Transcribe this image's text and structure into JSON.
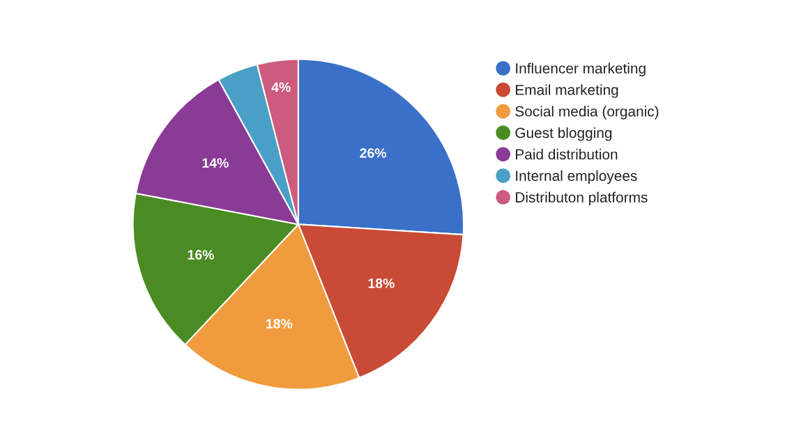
{
  "chart_data": {
    "type": "pie",
    "categories": [
      "Influencer marketing",
      "Email marketing",
      "Social media (organic)",
      "Guest blogging",
      "Paid distribution",
      "Internal employees",
      "Distributon platforms"
    ],
    "values": [
      26,
      18,
      18,
      16,
      14,
      4,
      4
    ],
    "value_labels": [
      "26%",
      "18%",
      "18%",
      "16%",
      "14%",
      null,
      "4%"
    ],
    "colors": [
      "#3a70c7",
      "#c94a35",
      "#f09c3e",
      "#4a8c23",
      "#8a3b96",
      "#4a9fc6",
      "#cc5b7e"
    ],
    "legend": "right"
  }
}
